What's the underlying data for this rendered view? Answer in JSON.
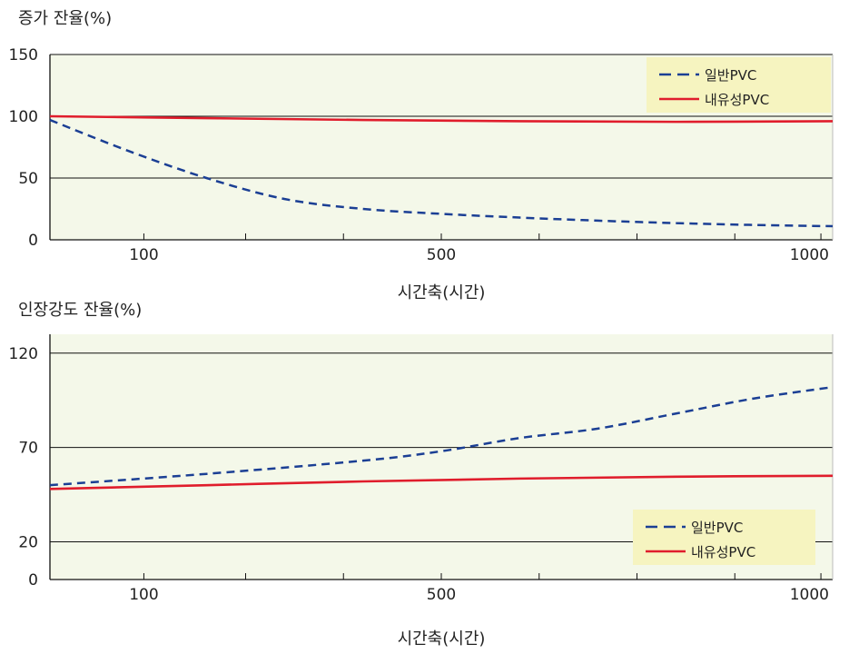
{
  "colors": {
    "plot_bg": "#f4f8e9",
    "legend_bg": "#f6f4c0",
    "grid": "#111111",
    "series_general": "#1b3f94",
    "series_resistant": "#e01d2c"
  },
  "chart_data": [
    {
      "type": "line",
      "title": "증가 잔율(%)",
      "xlabel": "시간축(시간)",
      "ylabel": "증가 잔율(%)",
      "x_tick_labels": [
        "100",
        "500",
        "1000"
      ],
      "y_ticks": [
        0,
        50,
        100,
        150
      ],
      "ylim": [
        0,
        150
      ],
      "grid": true,
      "legend_position": "top-right",
      "series": [
        {
          "name": "일반PVC",
          "style": "dashed",
          "points": [
            [
              0,
              97
            ],
            [
              0.1,
              72
            ],
            [
              0.2,
              50
            ],
            [
              0.3,
              33
            ],
            [
              0.4,
              25
            ],
            [
              0.5,
              21
            ],
            [
              0.6,
              18
            ],
            [
              0.7,
              15.5
            ],
            [
              0.8,
              13.5
            ],
            [
              0.9,
              12
            ],
            [
              1.0,
              11
            ]
          ]
        },
        {
          "name": "내유성PVC",
          "style": "solid",
          "points": [
            [
              0,
              100
            ],
            [
              0.2,
              98.5
            ],
            [
              0.4,
              97
            ],
            [
              0.6,
              96
            ],
            [
              0.8,
              95.5
            ],
            [
              1.0,
              96
            ]
          ]
        }
      ]
    },
    {
      "type": "line",
      "title": "인장강도 잔율(%)",
      "xlabel": "시간축(시간)",
      "ylabel": "인장강도 잔율(%)",
      "x_tick_labels": [
        "100",
        "500",
        "1000"
      ],
      "y_ticks": [
        0,
        20,
        70,
        120
      ],
      "ylim": [
        0,
        130
      ],
      "grid": true,
      "legend_position": "bottom-right",
      "series": [
        {
          "name": "일반PVC",
          "style": "dashed",
          "points": [
            [
              0,
              50
            ],
            [
              0.2,
              56
            ],
            [
              0.4,
              63
            ],
            [
              0.5,
              68
            ],
            [
              0.6,
              75
            ],
            [
              0.7,
              80
            ],
            [
              0.8,
              88
            ],
            [
              0.9,
              96
            ],
            [
              1.0,
              102
            ]
          ]
        },
        {
          "name": "내유성PVC",
          "style": "solid",
          "points": [
            [
              0,
              48
            ],
            [
              0.2,
              50
            ],
            [
              0.4,
              52
            ],
            [
              0.6,
              53.5
            ],
            [
              0.8,
              54.5
            ],
            [
              1.0,
              55
            ]
          ]
        }
      ]
    }
  ]
}
